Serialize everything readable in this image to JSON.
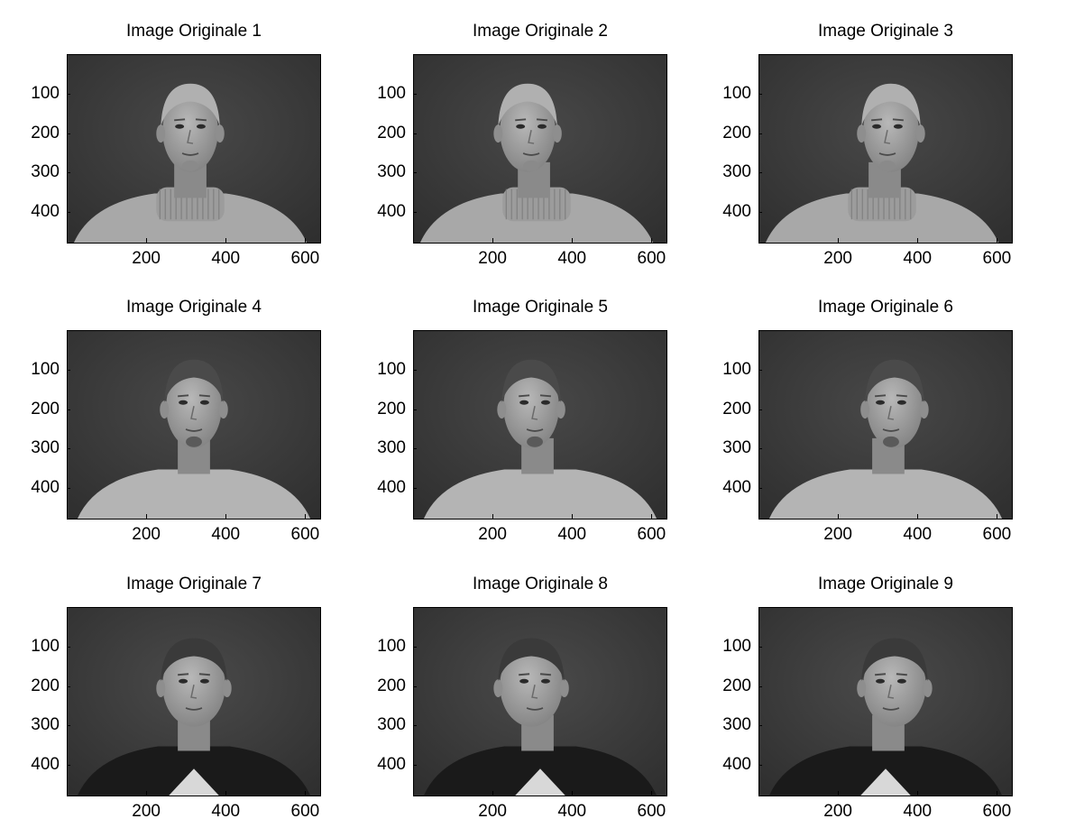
{
  "figure": {
    "panels": [
      {
        "title": "Image Originale 1",
        "subject": "person-a",
        "pose": "front"
      },
      {
        "title": "Image Originale 2",
        "subject": "person-a",
        "pose": "left"
      },
      {
        "title": "Image Originale 3",
        "subject": "person-a",
        "pose": "right"
      },
      {
        "title": "Image Originale 4",
        "subject": "person-b",
        "pose": "front"
      },
      {
        "title": "Image Originale 5",
        "subject": "person-b",
        "pose": "left"
      },
      {
        "title": "Image Originale 6",
        "subject": "person-b",
        "pose": "right"
      },
      {
        "title": "Image Originale 7",
        "subject": "person-c",
        "pose": "front"
      },
      {
        "title": "Image Originale 8",
        "subject": "person-c",
        "pose": "left"
      },
      {
        "title": "Image Originale 9",
        "subject": "person-c",
        "pose": "right"
      }
    ],
    "y_ticks": [
      "100",
      "200",
      "300",
      "400"
    ],
    "x_ticks": [
      "200",
      "400",
      "600"
    ],
    "image_range": {
      "x": [
        0,
        640
      ],
      "y": [
        0,
        480
      ]
    }
  }
}
